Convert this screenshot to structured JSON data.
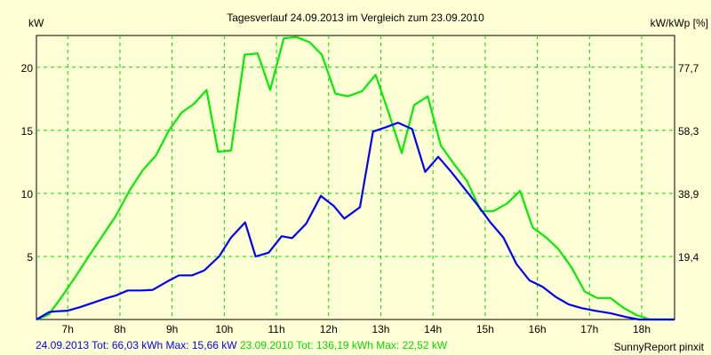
{
  "chart_data": {
    "type": "line",
    "title": "Tagesverlauf 24.09.2013 im Vergleich zum 23.09.2010",
    "ylabel": "kW",
    "ylabel_right": "kW/kWp [%]",
    "xlim": [
      6.4,
      18.63
    ],
    "ylim": [
      0,
      22.52
    ],
    "x_ticks": [
      7,
      8,
      9,
      10,
      11,
      12,
      13,
      14,
      15,
      16,
      17,
      18
    ],
    "x_tick_labels": [
      "7h",
      "8h",
      "9h",
      "10h",
      "11h",
      "12h",
      "13h",
      "14h",
      "15h",
      "16h",
      "17h",
      "18h"
    ],
    "y_ticks": [
      5,
      10,
      15,
      20
    ],
    "y_tick_labels": [
      "5",
      "10",
      "15",
      "20"
    ],
    "y_right_tick_labels": [
      "19,4",
      "38,9",
      "58,3",
      "77,7"
    ],
    "grid": true,
    "series": [
      {
        "name": "24.09.2013",
        "color": "#0000ff",
        "x": [
          6.4,
          6.65,
          6.77,
          7.0,
          7.25,
          7.5,
          7.75,
          7.92,
          8.15,
          8.4,
          8.63,
          8.9,
          9.13,
          9.38,
          9.62,
          9.9,
          10.13,
          10.4,
          10.6,
          10.85,
          11.1,
          11.3,
          11.57,
          11.85,
          12.1,
          12.3,
          12.6,
          12.85,
          13.1,
          13.33,
          13.6,
          13.85,
          14.1,
          14.35,
          14.6,
          14.85,
          15.1,
          15.35,
          15.6,
          15.85,
          16.1,
          16.35,
          16.6,
          16.85,
          17.1,
          17.4,
          17.7,
          17.95,
          18.63
        ],
        "y": [
          0,
          0.6,
          0.65,
          0.7,
          1.0,
          1.35,
          1.7,
          1.9,
          2.3,
          2.3,
          2.35,
          3.0,
          3.5,
          3.5,
          3.9,
          5.0,
          6.5,
          7.7,
          5.0,
          5.3,
          6.6,
          6.45,
          7.6,
          9.8,
          9.0,
          8.0,
          8.9,
          14.9,
          15.25,
          15.6,
          15.1,
          11.7,
          12.9,
          11.7,
          10.4,
          9.1,
          7.7,
          6.5,
          4.4,
          3.1,
          2.6,
          1.8,
          1.2,
          0.9,
          0.7,
          0.5,
          0.2,
          0,
          0
        ]
      },
      {
        "name": "23.09.2010",
        "color": "#00ee00",
        "x": [
          6.4,
          6.64,
          6.9,
          7.15,
          7.4,
          7.66,
          7.92,
          8.18,
          8.43,
          8.69,
          8.94,
          9.18,
          9.42,
          9.66,
          9.88,
          10.13,
          10.39,
          10.64,
          10.88,
          11.14,
          11.38,
          11.63,
          11.87,
          12.13,
          12.37,
          12.64,
          12.9,
          13.15,
          13.4,
          13.64,
          13.9,
          14.15,
          14.39,
          14.65,
          14.92,
          15.16,
          15.42,
          15.67,
          15.91,
          16.17,
          16.4,
          16.66,
          16.91,
          17.15,
          17.4,
          17.66,
          17.9,
          18.16,
          18.63
        ],
        "y": [
          0,
          0.4,
          1.9,
          3.4,
          5.0,
          6.6,
          8.2,
          10.2,
          11.8,
          13.0,
          15.0,
          16.4,
          17.1,
          18.2,
          13.3,
          13.4,
          21.0,
          21.1,
          18.2,
          22.3,
          22.4,
          22.0,
          21.0,
          17.9,
          17.7,
          18.1,
          19.4,
          16.4,
          13.2,
          17.0,
          17.7,
          13.8,
          12.4,
          11.0,
          8.6,
          8.6,
          9.2,
          10.2,
          7.3,
          6.5,
          5.6,
          4.1,
          2.2,
          1.7,
          1.7,
          0.9,
          0.35,
          0,
          0
        ]
      }
    ]
  },
  "footer": {
    "summary_2013": "24.09.2013 Tot: 66,03 kWh Max: 15,66 kW",
    "summary_2010": "23.09.2010 Tot: 136,19 kWh Max: 22,52 kW",
    "credit": "SunnyReport pinxit"
  }
}
